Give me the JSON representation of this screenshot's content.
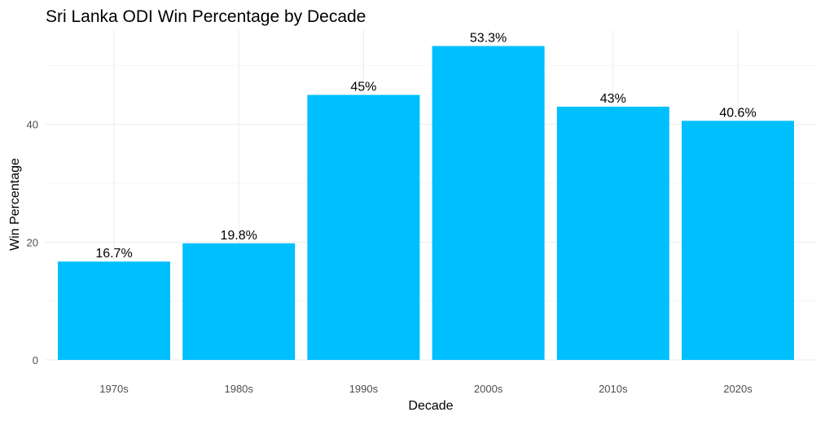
{
  "chart_data": {
    "type": "bar",
    "title": "Sri Lanka ODI Win Percentage by Decade",
    "xlabel": "Decade",
    "ylabel": "Win Percentage",
    "categories": [
      "1970s",
      "1980s",
      "1990s",
      "2000s",
      "2010s",
      "2020s"
    ],
    "values": [
      16.7,
      19.8,
      45,
      53.3,
      43,
      40.6
    ],
    "data_labels": [
      "16.7%",
      "19.8%",
      "45%",
      "53.3%",
      "43%",
      "40.6%"
    ],
    "yticks": [
      0,
      20,
      40
    ],
    "ylim": [
      0,
      56
    ],
    "grid": true,
    "legend": "none",
    "bar_color": "#00BFFF"
  }
}
